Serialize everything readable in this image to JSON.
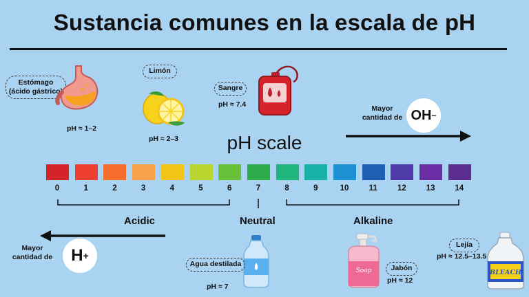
{
  "title": "Sustancia comunes en la escala de pH",
  "scale_title": "pH scale",
  "colors": [
    "#d6232a",
    "#ee4030",
    "#f46d2b",
    "#f7a24a",
    "#f2c417",
    "#b8d62e",
    "#69c13a",
    "#2eab4a",
    "#20b57c",
    "#19b0a8",
    "#1b91d3",
    "#1e5fb3",
    "#4e3ba7",
    "#6b2da3",
    "#5c2c8f"
  ],
  "ticks": [
    "0",
    "1",
    "2",
    "3",
    "4",
    "5",
    "6",
    "7",
    "8",
    "9",
    "10",
    "11",
    "12",
    "13",
    "14"
  ],
  "regions": {
    "acidic": "Acidic",
    "neutral": "Neutral",
    "alkaline": "Alkaline"
  },
  "oh": {
    "text_line1": "Mayor",
    "text_line2": "cantidad de",
    "ion": "OH",
    "charge": "−"
  },
  "h": {
    "text_line1": "Mayor",
    "text_line2": "cantidad de",
    "ion": "H",
    "charge": "+"
  },
  "substances": {
    "stomach": {
      "label_line1": "Estómago",
      "label_line2": "(ácido gástrico)",
      "ph": "pH ≈ 1–2",
      "icon": "stomach-icon"
    },
    "lemon": {
      "label": "Limón",
      "ph": "pH ≈ 2–3",
      "icon": "lemon-icon"
    },
    "blood": {
      "label": "Sangre",
      "ph": "pH ≈ 7.4",
      "icon": "blood-bag-icon"
    },
    "water": {
      "label": "Agua destilada",
      "ph": "pH ≈ 7",
      "icon": "water-bottle-icon"
    },
    "soap": {
      "label": "Jabón",
      "ph": "pH ≈ 12",
      "icon": "soap-dispenser-icon",
      "bottle_text": "Soap"
    },
    "bleach": {
      "label": "Lejía",
      "ph": "pH ≈ 12.5–13.5",
      "icon": "bleach-bottle-icon",
      "bottle_text": "BLEACH"
    }
  }
}
